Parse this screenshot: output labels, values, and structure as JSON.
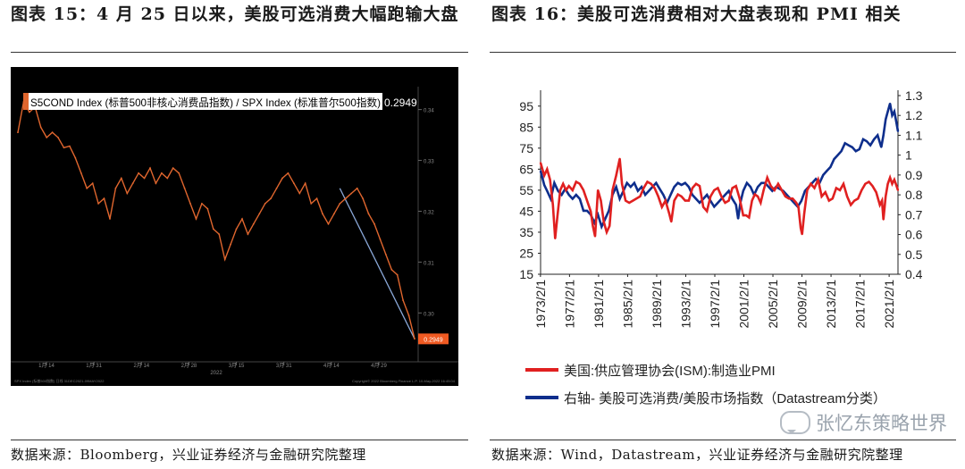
{
  "titles": {
    "left": "图表 15：4 月 25 日以来，美股可选消费大幅跑输大盘",
    "right": "图表 16：美股可选消费相对大盘表现和 PMI 相关"
  },
  "sources": {
    "left": "数据来源：Bloomberg，兴业证券经济与金融研究院整理",
    "right": "数据来源：Wind，Datastream，兴业证券经济与金融研究院整理"
  },
  "watermark": "张忆东策略世界",
  "chart_data": [
    {
      "type": "line",
      "legend": "S5COND Index (标普500非核心消费品指数) / SPX Index (标准普尔500指数)",
      "last_value_label": "0.2949",
      "x_ticks": [
        "1月 14",
        "1月 31",
        "2月 14",
        "2月 28",
        "3月 15",
        "3月 31",
        "4月 14",
        "4月 29"
      ],
      "x_sublabel": "2022",
      "y_ticks": [
        0.34,
        0.33,
        0.32,
        0.31,
        0.3
      ],
      "ylim": [
        0.2925,
        0.3445
      ],
      "values": [
        0.3355,
        0.3415,
        0.3395,
        0.3405,
        0.3365,
        0.3345,
        0.3355,
        0.3345,
        0.3325,
        0.3328,
        0.3305,
        0.3275,
        0.3245,
        0.3255,
        0.3215,
        0.3225,
        0.3185,
        0.3245,
        0.3265,
        0.3235,
        0.3255,
        0.3275,
        0.3265,
        0.3285,
        0.3255,
        0.3275,
        0.3265,
        0.3285,
        0.3275,
        0.3245,
        0.3215,
        0.3185,
        0.3215,
        0.3205,
        0.3165,
        0.3155,
        0.3105,
        0.3135,
        0.3165,
        0.3185,
        0.3155,
        0.3175,
        0.3195,
        0.3215,
        0.3225,
        0.3245,
        0.3265,
        0.3275,
        0.3255,
        0.3235,
        0.3255,
        0.3215,
        0.3225,
        0.3195,
        0.3175,
        0.3195,
        0.3215,
        0.3225,
        0.3235,
        0.3245,
        0.3225,
        0.3195,
        0.3175,
        0.3145,
        0.3115,
        0.3085,
        0.3075,
        0.3025,
        0.2995,
        0.2949
      ],
      "trend_line": [
        0.3245,
        0.2949
      ],
      "footer_left": "SPX Index (标普500指数) 日线 31DEC2021-09MAY2022",
      "footer_right": "Copyright© 2022 Bloomberg Finance L.P.    10-May-2022 16:45:04"
    },
    {
      "type": "line",
      "x_ticks": [
        "1973/2/1",
        "1977/2/1",
        "1981/2/1",
        "1985/2/1",
        "1989/2/1",
        "1993/2/1",
        "1997/2/1",
        "2001/2/1",
        "2005/2/1",
        "2009/2/1",
        "2013/2/1",
        "2017/2/1",
        "2021/2/1"
      ],
      "x_range": [
        1973.1,
        2022.3
      ],
      "y_left_ticks": [
        15,
        25,
        35,
        45,
        55,
        65,
        75,
        85,
        95
      ],
      "y_left_range": [
        15,
        100
      ],
      "y_right_ticks": [
        0.4,
        0.5,
        0.6,
        0.7,
        0.8,
        0.9,
        1.0,
        1.1,
        1.2,
        1.3
      ],
      "y_right_labels": [
        "0.4",
        "0.5",
        "0.6",
        "0.7",
        "0.8",
        "0.9",
        "1",
        "1.1",
        "1.2",
        "1.3"
      ],
      "y_right_range": [
        0.4,
        1.3
      ],
      "series": [
        {
          "name": "美国:供应管理协会(ISM):制造业PMI",
          "axis": "left",
          "color": "#e02020",
          "x": [
            1973.1,
            1973.6,
            1974.0,
            1974.4,
            1974.8,
            1975.1,
            1975.4,
            1975.8,
            1976.2,
            1976.6,
            1977.0,
            1977.5,
            1978.0,
            1978.5,
            1979.0,
            1979.5,
            1980.0,
            1980.3,
            1980.6,
            1981.0,
            1981.4,
            1981.8,
            1982.2,
            1982.6,
            1983.0,
            1983.5,
            1984.0,
            1984.3,
            1984.8,
            1985.3,
            1985.8,
            1986.3,
            1986.8,
            1987.3,
            1987.8,
            1988.3,
            1988.8,
            1989.3,
            1989.8,
            1990.3,
            1990.8,
            1991.1,
            1991.5,
            1992.0,
            1992.5,
            1993.0,
            1993.5,
            1994.0,
            1994.5,
            1995.0,
            1995.5,
            1996.0,
            1996.5,
            1997.0,
            1997.5,
            1998.0,
            1998.5,
            1999.0,
            1999.5,
            2000.0,
            2000.5,
            2001.0,
            2001.4,
            2001.8,
            2002.2,
            2002.6,
            2003.0,
            2003.4,
            2003.8,
            2004.3,
            2004.8,
            2005.3,
            2005.8,
            2006.3,
            2006.8,
            2007.3,
            2007.8,
            2008.3,
            2008.6,
            2008.9,
            2009.1,
            2009.4,
            2009.8,
            2010.3,
            2010.8,
            2011.3,
            2011.8,
            2012.3,
            2012.8,
            2013.3,
            2013.8,
            2014.3,
            2014.8,
            2015.3,
            2015.8,
            2016.3,
            2016.8,
            2017.3,
            2017.8,
            2018.3,
            2018.8,
            2019.3,
            2019.8,
            2020.1,
            2020.3,
            2020.6,
            2020.9,
            2021.2,
            2021.5,
            2021.8,
            2022.0,
            2022.3
          ],
          "y": [
            68,
            62,
            65,
            60,
            48,
            32,
            42,
            55,
            58,
            55,
            57,
            55,
            59,
            58,
            55,
            50,
            45,
            38,
            33,
            55,
            50,
            40,
            35,
            38,
            55,
            62,
            70,
            58,
            50,
            49,
            50,
            51,
            52,
            56,
            59,
            58,
            56,
            52,
            47,
            50,
            44,
            40,
            50,
            53,
            52,
            50,
            50,
            56,
            58,
            57,
            47,
            45,
            52,
            55,
            56,
            52,
            49,
            50,
            56,
            57,
            51,
            43,
            43,
            42,
            50,
            53,
            52,
            49,
            55,
            61,
            57,
            55,
            58,
            55,
            52,
            51,
            51,
            49,
            47,
            37,
            34,
            44,
            55,
            58,
            56,
            60,
            52,
            54,
            50,
            51,
            56,
            55,
            58,
            52,
            48,
            50,
            51,
            55,
            58,
            59,
            57,
            54,
            48,
            50,
            41,
            52,
            58,
            61,
            58,
            60,
            58,
            55
          ]
        },
        {
          "name": "右轴- 美股可选消费/美股市场指数（Datastream分类）",
          "axis": "right",
          "color": "#0e2e8c",
          "x": [
            1973.1,
            1973.6,
            1974.0,
            1974.5,
            1975.0,
            1975.5,
            1976.0,
            1976.5,
            1977.0,
            1977.5,
            1978.0,
            1978.5,
            1979.0,
            1979.5,
            1980.0,
            1980.5,
            1981.0,
            1981.5,
            1982.0,
            1982.5,
            1983.0,
            1983.5,
            1984.0,
            1984.5,
            1985.0,
            1985.5,
            1986.0,
            1986.5,
            1987.0,
            1987.5,
            1988.0,
            1988.5,
            1989.0,
            1989.5,
            1990.0,
            1990.5,
            1991.0,
            1991.5,
            1992.0,
            1992.5,
            1993.0,
            1993.5,
            1994.0,
            1994.5,
            1995.0,
            1995.5,
            1996.0,
            1996.5,
            1997.0,
            1997.5,
            1998.0,
            1998.5,
            1999.0,
            1999.5,
            2000.0,
            2000.3,
            2000.6,
            2001.0,
            2001.5,
            2002.0,
            2002.5,
            2003.0,
            2003.5,
            2004.0,
            2004.5,
            2005.0,
            2005.5,
            2006.0,
            2006.5,
            2007.0,
            2007.5,
            2008.0,
            2008.5,
            2009.0,
            2009.5,
            2010.0,
            2010.5,
            2011.0,
            2011.5,
            2012.0,
            2012.5,
            2013.0,
            2013.5,
            2014.0,
            2014.5,
            2015.0,
            2015.5,
            2016.0,
            2016.5,
            2017.0,
            2017.5,
            2018.0,
            2018.5,
            2019.0,
            2019.5,
            2020.0,
            2020.3,
            2020.6,
            2020.9,
            2021.2,
            2021.5,
            2021.8,
            2022.0,
            2022.3
          ],
          "y": [
            0.92,
            0.85,
            0.82,
            0.78,
            0.86,
            0.82,
            0.8,
            0.83,
            0.8,
            0.78,
            0.8,
            0.78,
            0.72,
            0.72,
            0.7,
            0.66,
            0.7,
            0.64,
            0.68,
            0.72,
            0.8,
            0.84,
            0.78,
            0.82,
            0.86,
            0.84,
            0.86,
            0.82,
            0.84,
            0.8,
            0.82,
            0.84,
            0.86,
            0.83,
            0.8,
            0.76,
            0.8,
            0.84,
            0.86,
            0.85,
            0.86,
            0.84,
            0.8,
            0.78,
            0.76,
            0.78,
            0.8,
            0.77,
            0.74,
            0.76,
            0.78,
            0.8,
            0.82,
            0.78,
            0.75,
            0.68,
            0.76,
            0.82,
            0.86,
            0.84,
            0.8,
            0.84,
            0.86,
            0.86,
            0.84,
            0.82,
            0.84,
            0.83,
            0.82,
            0.8,
            0.78,
            0.76,
            0.74,
            0.77,
            0.82,
            0.84,
            0.86,
            0.88,
            0.86,
            0.9,
            0.92,
            0.94,
            0.98,
            1.0,
            1.02,
            1.06,
            1.05,
            1.04,
            1.02,
            1.03,
            1.08,
            1.07,
            1.05,
            1.08,
            1.1,
            1.04,
            1.1,
            1.18,
            1.22,
            1.26,
            1.2,
            1.22,
            1.18,
            1.12
          ]
        }
      ]
    }
  ]
}
